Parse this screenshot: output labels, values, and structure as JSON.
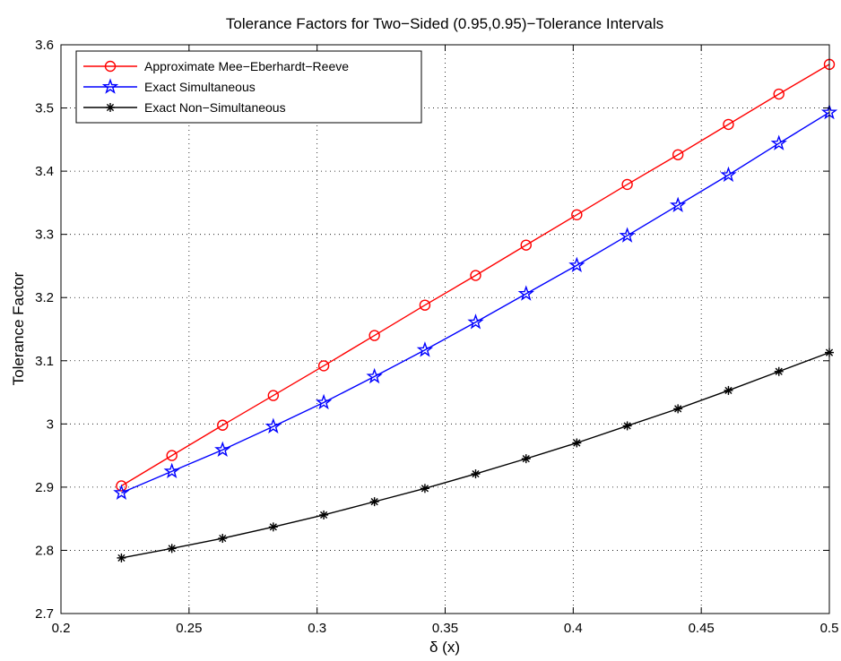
{
  "chart_data": {
    "type": "line",
    "title": "Tolerance Factors for Two−Sided (0.95,0.95)−Tolerance Intervals",
    "xlabel": "δ (x)",
    "ylabel": "Tolerance Factor",
    "xlim": [
      0.2,
      0.5
    ],
    "ylim": [
      2.7,
      3.6
    ],
    "xticks": [
      "0.2",
      "0.25",
      "0.3",
      "0.35",
      "0.4",
      "0.45",
      "0.5"
    ],
    "yticks": [
      "2.7",
      "2.8",
      "2.9",
      "3",
      "3.1",
      "3.2",
      "3.3",
      "3.4",
      "3.5",
      "3.6"
    ],
    "grid": true,
    "legend_position": "top-left",
    "x": [
      0.2236,
      0.2433,
      0.2631,
      0.2829,
      0.3026,
      0.3224,
      0.3421,
      0.3619,
      0.3816,
      0.4014,
      0.4211,
      0.4409,
      0.4606,
      0.4803,
      0.5
    ],
    "series": [
      {
        "name": "Approximate Mee−Eberhardt−Reeve",
        "color": "#ff0000",
        "marker": "circle",
        "values": [
          2.902,
          2.95,
          2.998,
          3.045,
          3.092,
          3.14,
          3.188,
          3.235,
          3.283,
          3.331,
          3.379,
          3.426,
          3.474,
          3.522,
          3.569
        ]
      },
      {
        "name": "Exact Simultaneous",
        "color": "#0000ff",
        "marker": "star",
        "values": [
          2.891,
          2.925,
          2.959,
          2.996,
          3.034,
          3.075,
          3.117,
          3.161,
          3.206,
          3.251,
          3.298,
          3.346,
          3.394,
          3.444,
          3.493
        ]
      },
      {
        "name": "Exact Non−Simultaneous",
        "color": "#000000",
        "marker": "asterisk",
        "values": [
          2.788,
          2.803,
          2.819,
          2.837,
          2.856,
          2.877,
          2.898,
          2.921,
          2.945,
          2.97,
          2.997,
          3.024,
          3.053,
          3.083,
          3.113
        ]
      }
    ]
  }
}
